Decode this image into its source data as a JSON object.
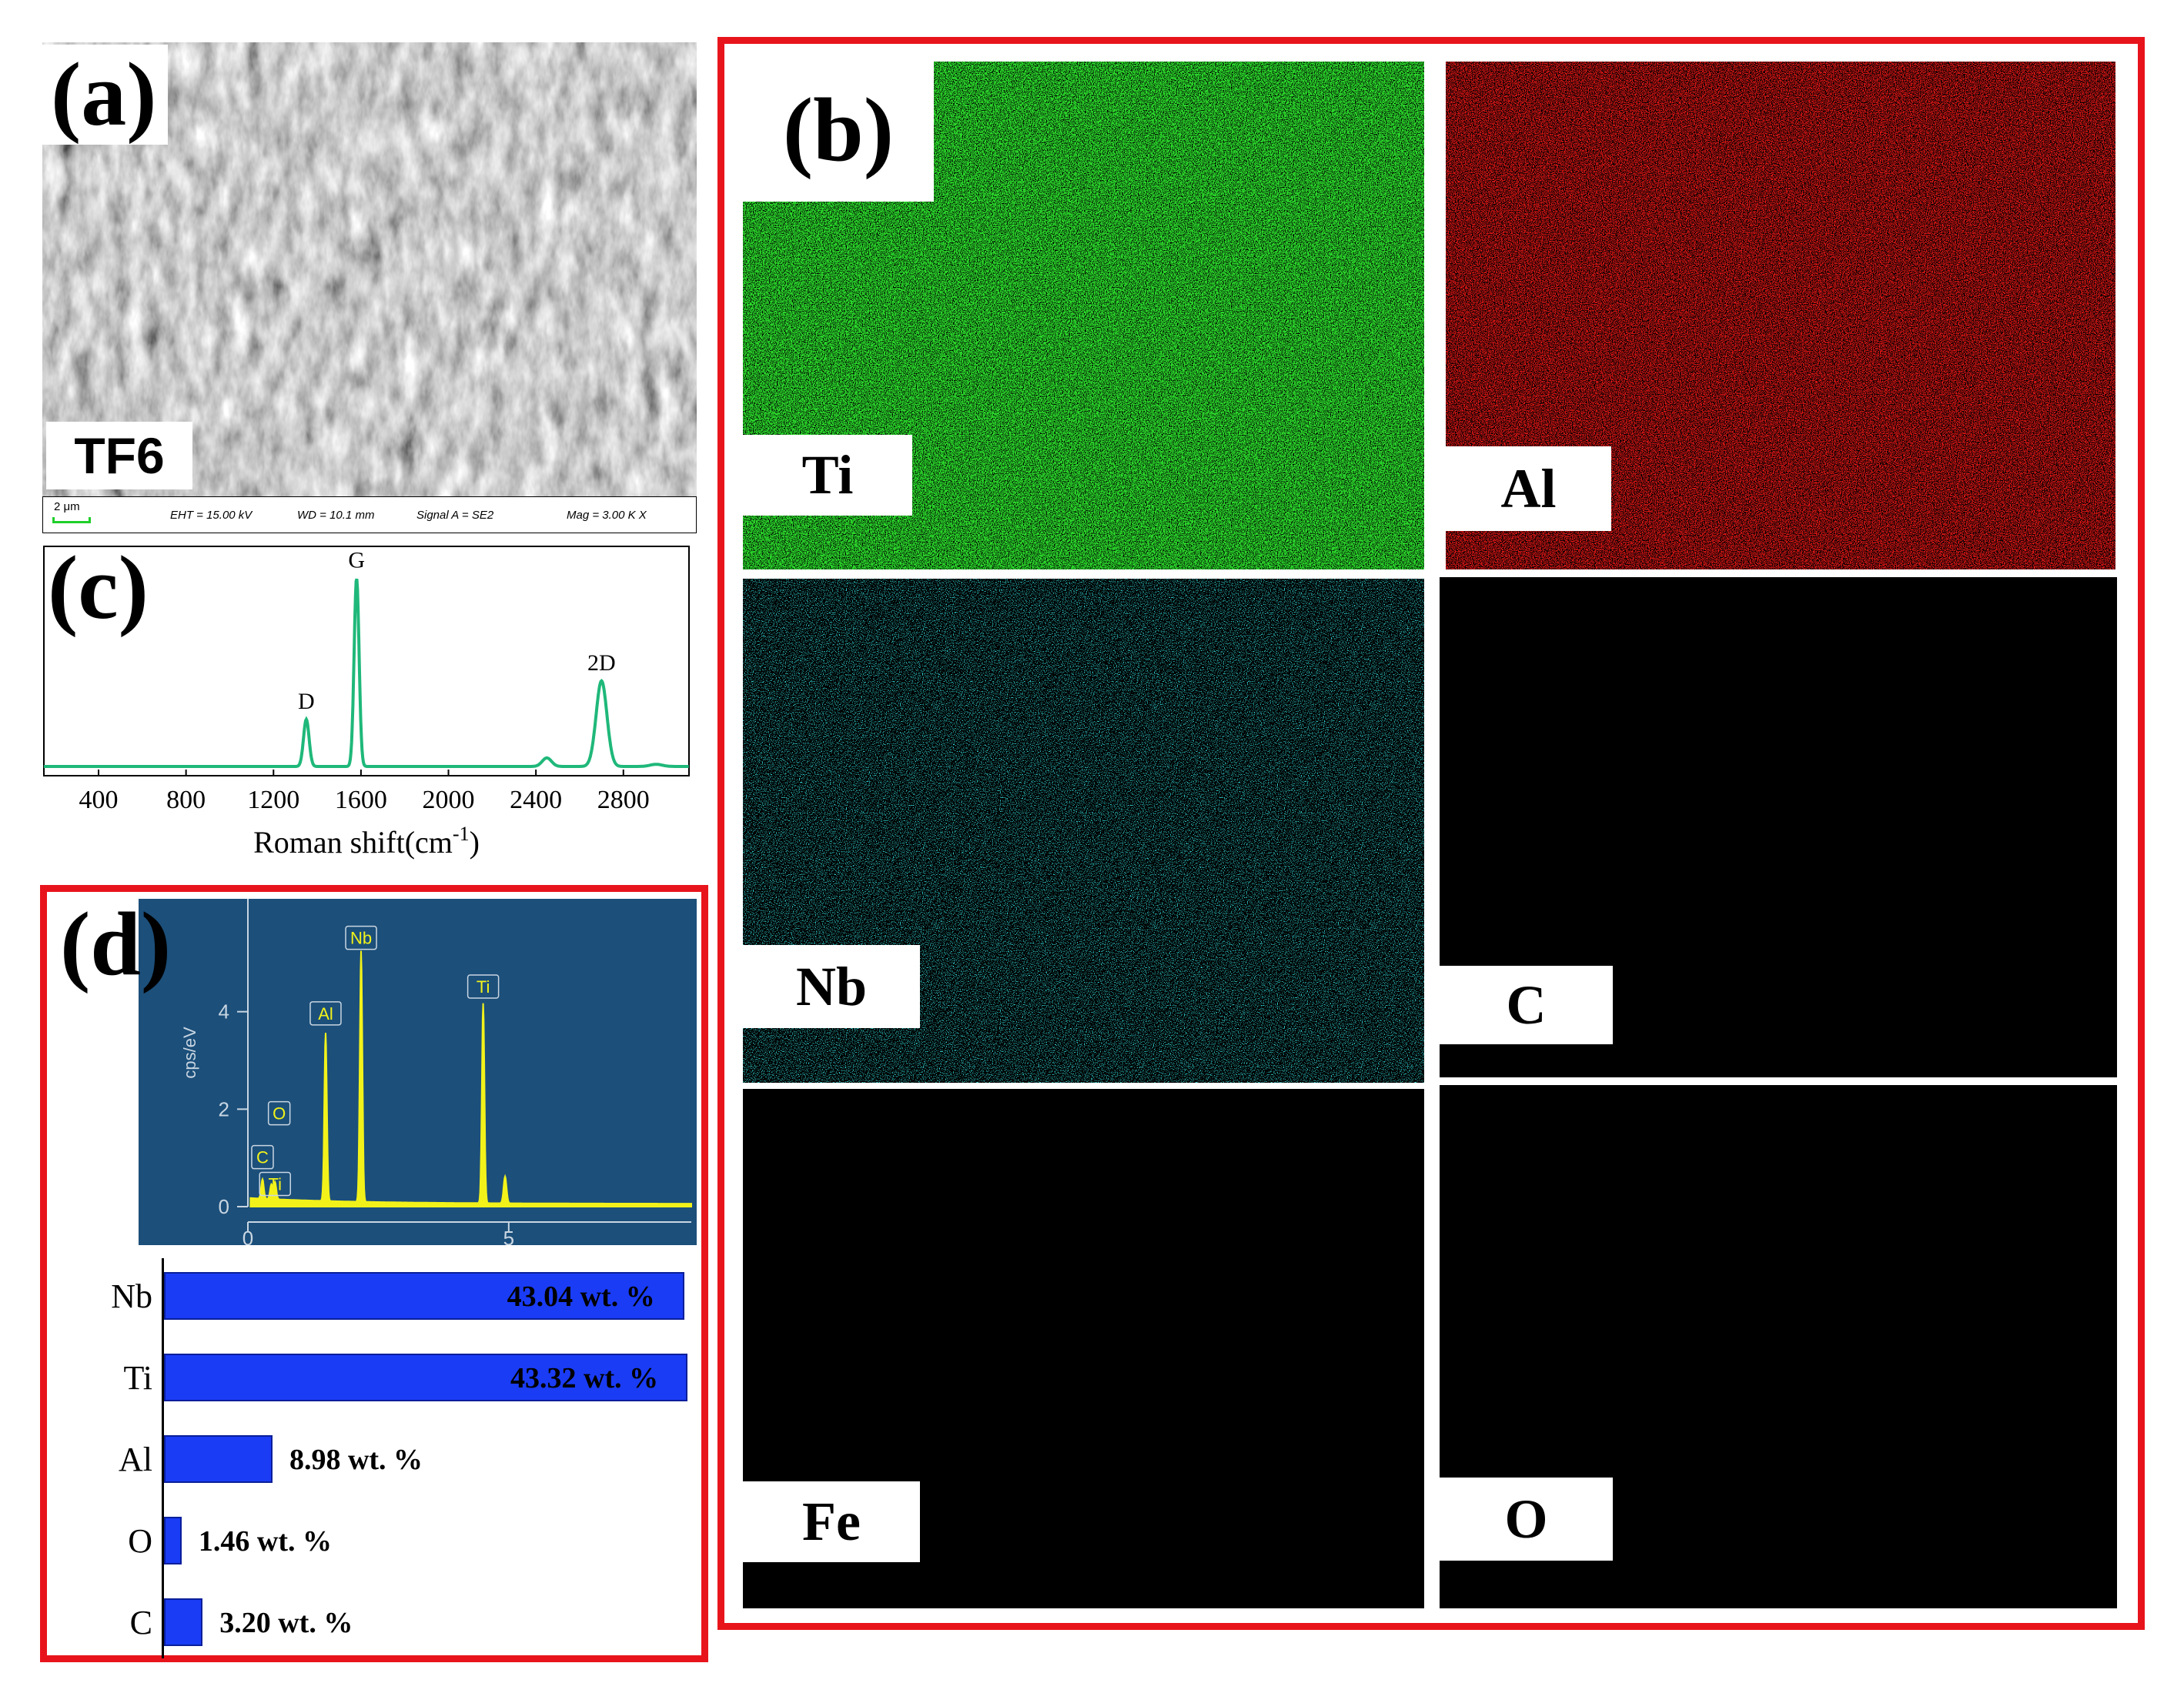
{
  "panels": {
    "a": "(a)",
    "b": "(b)",
    "c": "(c)",
    "d": "(d)"
  },
  "sem": {
    "sample_label": "TF6",
    "scale_bar": "2 μm",
    "eht": "EHT = 15.00 kV",
    "wd": "WD = 10.1 mm",
    "signal": "Signal A = SE2",
    "mag": "Mag =   3.00 K X"
  },
  "maps": [
    {
      "label": "Ti",
      "color": "#2bd62b"
    },
    {
      "label": "Al",
      "color": "#e01818"
    },
    {
      "label": "Nb",
      "color": "#2ec4c4"
    },
    {
      "label": "C",
      "color": "#e6e61c"
    },
    {
      "label": "Fe",
      "color": "#d8c81a"
    },
    {
      "label": "O",
      "color": "#c82ac8"
    }
  ],
  "chart_data": [
    {
      "type": "line",
      "panel": "(c)",
      "xlabel": "Roman shift(cm",
      "xlabel_sup": "-1",
      "xlabel_tail": ")",
      "xticks": [
        400,
        800,
        1200,
        1600,
        2000,
        2400,
        2800
      ],
      "xlim": [
        150,
        3100
      ],
      "color": "#1fb87a",
      "peaks": [
        {
          "label": "D",
          "x": 1350,
          "height": 0.22
        },
        {
          "label": "G",
          "x": 1580,
          "height": 0.88
        },
        {
          "label": "2D",
          "x": 2700,
          "height": 0.4
        }
      ]
    },
    {
      "type": "line",
      "panel": "(d) EDS spectrum",
      "ylabel": "cps/eV",
      "yticks": [
        0,
        2,
        4
      ],
      "xticks": [
        0,
        5
      ],
      "xlim": [
        0,
        8.5
      ],
      "ylim": [
        0,
        6
      ],
      "color": "#f2f21a",
      "peaks": [
        {
          "label": "C",
          "x": 0.28,
          "y": 0.4
        },
        {
          "label": "O",
          "x": 0.52,
          "y": 0.35
        },
        {
          "label": "Ti",
          "x": 0.45,
          "y": 0.3
        },
        {
          "label": "Al",
          "x": 1.49,
          "y": 3.45
        },
        {
          "label": "Nb",
          "x": 2.17,
          "y": 5.15
        },
        {
          "label": "Ti",
          "x": 4.51,
          "y": 4.1
        }
      ]
    },
    {
      "type": "bar",
      "panel": "(d) composition",
      "orientation": "horizontal",
      "categories": [
        "Nb",
        "Ti",
        "Al",
        "O",
        "C"
      ],
      "values": [
        43.04,
        43.32,
        8.98,
        1.46,
        3.2
      ],
      "value_labels": [
        "43.04 wt. %",
        "43.32 wt. %",
        "8.98 wt. %",
        "1.46 wt. %",
        "3.20 wt. %"
      ],
      "xlim": [
        0,
        43.32
      ]
    }
  ]
}
